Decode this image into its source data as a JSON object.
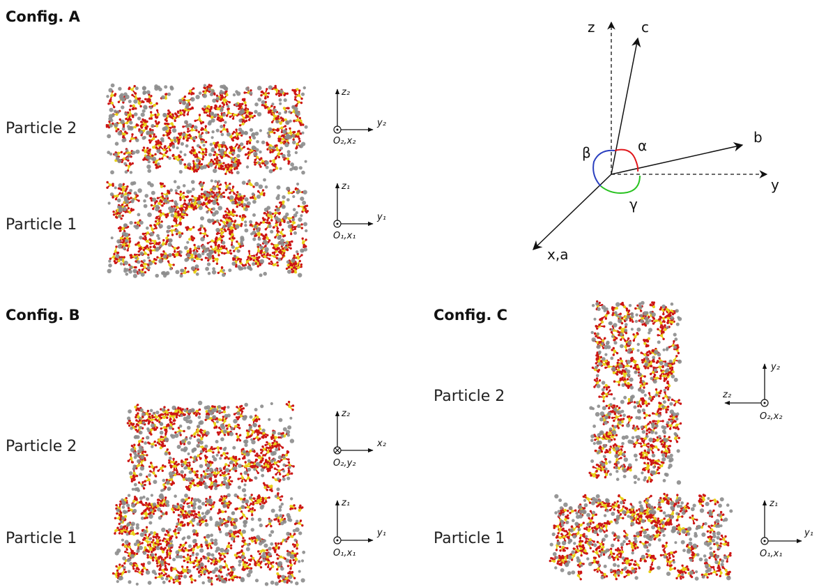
{
  "configs": {
    "a": {
      "title": "Config. A",
      "particle2": "Particle 2",
      "particle1": "Particle 1"
    },
    "b": {
      "title": "Config. B",
      "particle2": "Particle 2",
      "particle1": "Particle 1"
    },
    "c": {
      "title": "Config. C",
      "particle2": "Particle 2",
      "particle1": "Particle 1"
    }
  },
  "frames": {
    "a2": {
      "v": "z₂",
      "h": "y₂",
      "o": "O₂,x₂"
    },
    "a1": {
      "v": "z₁",
      "h": "y₁",
      "o": "O₁,x₁"
    },
    "b2": {
      "v": "z₂",
      "h": "x₂",
      "o": "O₂,y₂"
    },
    "b1": {
      "v": "z₁",
      "h": "y₁",
      "o": "O₁,x₁"
    },
    "c2": {
      "v": "y₂",
      "h": "z₂",
      "o": "O₂,x₂"
    },
    "c1": {
      "v": "z₁",
      "h": "y₁",
      "o": "O₁,x₁"
    }
  },
  "triad": {
    "z": "z",
    "c": "c",
    "b": "b",
    "y": "y",
    "xa": "x,a",
    "alpha": "α",
    "beta": "β",
    "gamma": "γ",
    "colors": {
      "alpha": "#e0161b",
      "beta": "#2a3fbf",
      "gamma": "#27c21f"
    }
  },
  "molecule_colors": {
    "sulfur": "#e8d21a",
    "oxygen": "#cc1515",
    "water": "#8c8c8c"
  }
}
